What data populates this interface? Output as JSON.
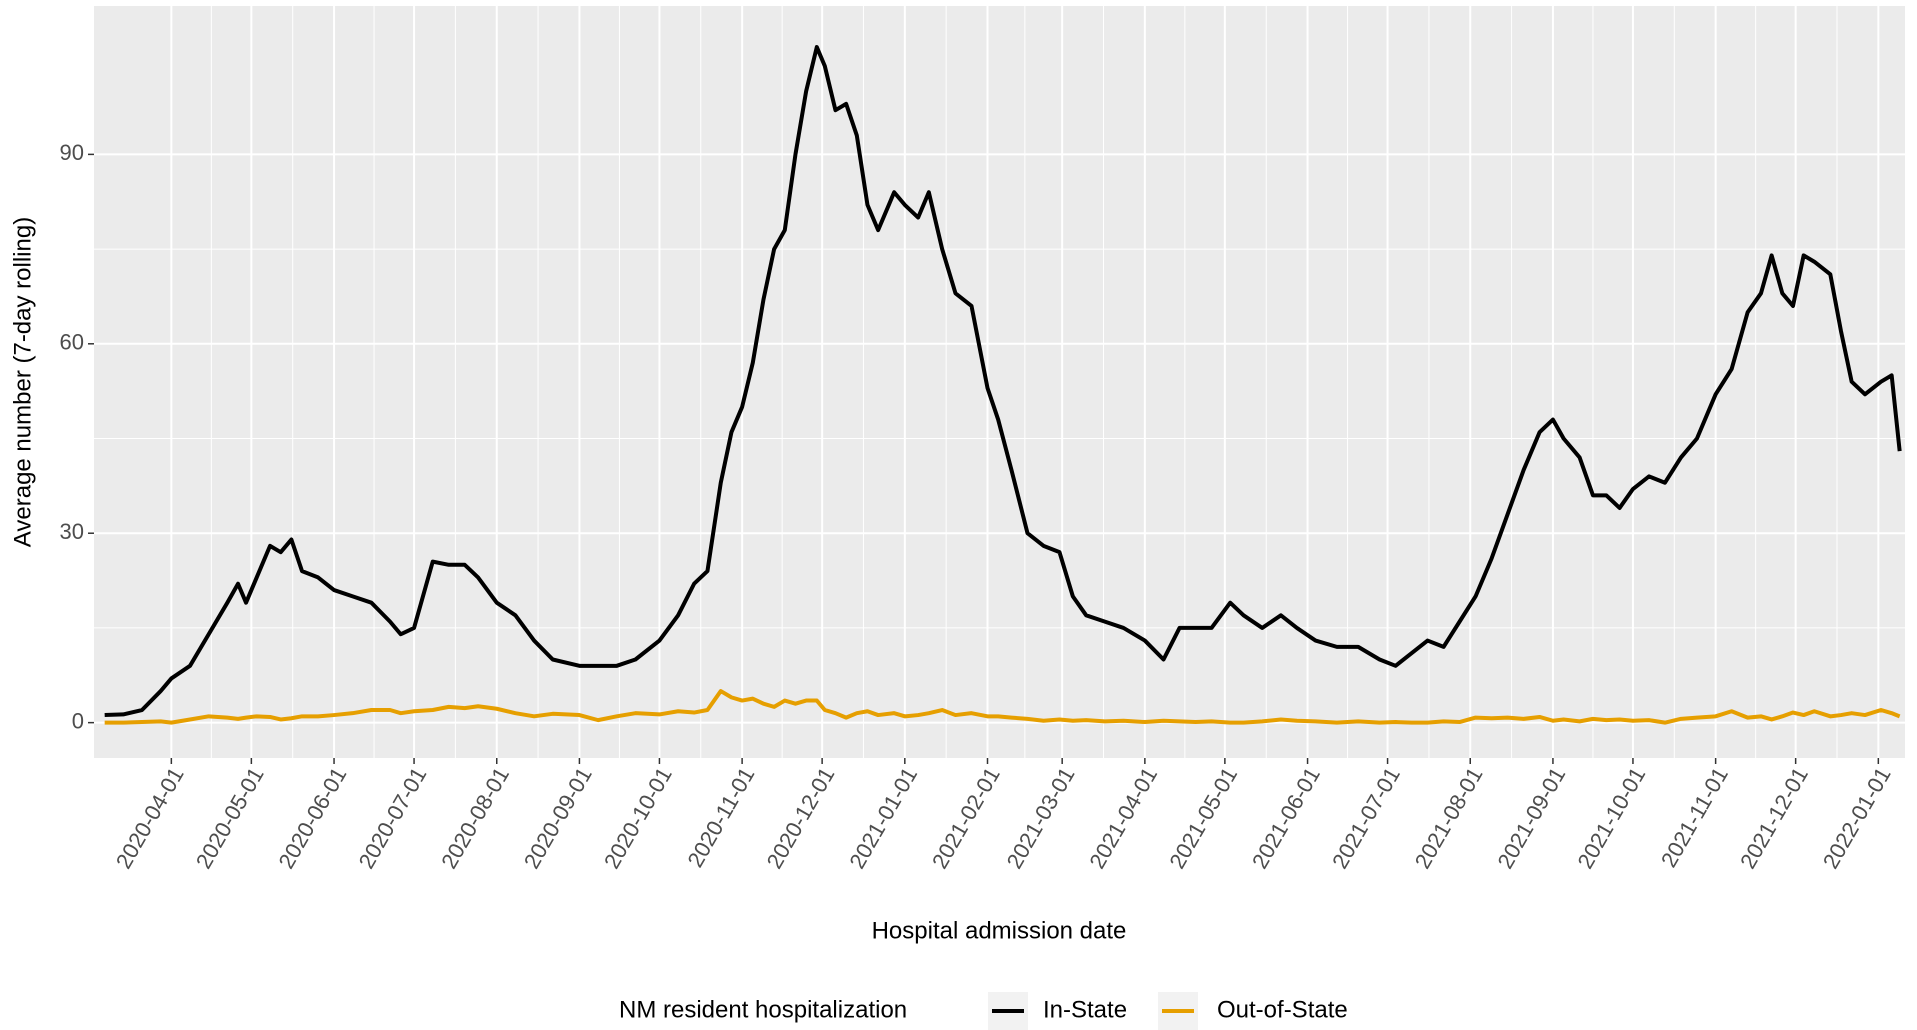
{
  "chart_data": {
    "type": "line",
    "x_label": "Hospital admission date",
    "y_label": "Average number (7-day rolling)",
    "legend_title": "NM resident hospitalization",
    "legend_position": "bottom",
    "grid": true,
    "x": [
      "2020-03-07",
      "2020-03-14",
      "2020-03-21",
      "2020-03-28",
      "2020-04-01",
      "2020-04-08",
      "2020-04-15",
      "2020-04-22",
      "2020-04-26",
      "2020-04-29",
      "2020-05-03",
      "2020-05-08",
      "2020-05-12",
      "2020-05-16",
      "2020-05-20",
      "2020-05-26",
      "2020-06-01",
      "2020-06-08",
      "2020-06-15",
      "2020-06-22",
      "2020-06-26",
      "2020-07-01",
      "2020-07-08",
      "2020-07-14",
      "2020-07-20",
      "2020-07-25",
      "2020-08-01",
      "2020-08-08",
      "2020-08-15",
      "2020-08-22",
      "2020-09-01",
      "2020-09-08",
      "2020-09-15",
      "2020-09-22",
      "2020-10-01",
      "2020-10-08",
      "2020-10-14",
      "2020-10-19",
      "2020-10-24",
      "2020-10-28",
      "2020-11-01",
      "2020-11-05",
      "2020-11-09",
      "2020-11-13",
      "2020-11-17",
      "2020-11-21",
      "2020-11-25",
      "2020-11-29",
      "2020-12-02",
      "2020-12-06",
      "2020-12-10",
      "2020-12-14",
      "2020-12-18",
      "2020-12-22",
      "2020-12-28",
      "2021-01-01",
      "2021-01-06",
      "2021-01-10",
      "2021-01-15",
      "2021-01-20",
      "2021-01-26",
      "2021-02-01",
      "2021-02-05",
      "2021-02-10",
      "2021-02-16",
      "2021-02-22",
      "2021-02-28",
      "2021-03-05",
      "2021-03-10",
      "2021-03-17",
      "2021-03-24",
      "2021-04-01",
      "2021-04-08",
      "2021-04-14",
      "2021-04-20",
      "2021-04-26",
      "2021-05-03",
      "2021-05-08",
      "2021-05-15",
      "2021-05-22",
      "2021-05-28",
      "2021-06-04",
      "2021-06-12",
      "2021-06-20",
      "2021-06-28",
      "2021-07-04",
      "2021-07-10",
      "2021-07-16",
      "2021-07-22",
      "2021-07-28",
      "2021-08-03",
      "2021-08-09",
      "2021-08-15",
      "2021-08-21",
      "2021-08-27",
      "2021-09-01",
      "2021-09-05",
      "2021-09-11",
      "2021-09-16",
      "2021-09-21",
      "2021-09-26",
      "2021-10-01",
      "2021-10-07",
      "2021-10-13",
      "2021-10-19",
      "2021-10-25",
      "2021-11-01",
      "2021-11-07",
      "2021-11-13",
      "2021-11-18",
      "2021-11-22",
      "2021-11-26",
      "2021-11-30",
      "2021-12-04",
      "2021-12-08",
      "2021-12-14",
      "2021-12-18",
      "2021-12-22",
      "2021-12-27",
      "2022-01-02",
      "2022-01-06",
      "2022-01-09"
    ],
    "series": [
      {
        "name": "In-State",
        "color": "#000000",
        "values": [
          1.2,
          1.3,
          2,
          5,
          7,
          9,
          14,
          19,
          22,
          19,
          23,
          28,
          27,
          29,
          24,
          23,
          21,
          20,
          19,
          16,
          14,
          15,
          25.5,
          25,
          25,
          23,
          19,
          17,
          13,
          10,
          9,
          9,
          9,
          10,
          13,
          17,
          22,
          24,
          38,
          46,
          50,
          57,
          67,
          75,
          78,
          90,
          100,
          107,
          104,
          97,
          98,
          93,
          82,
          78,
          84,
          82,
          80,
          84,
          75,
          68,
          66,
          53,
          48,
          40,
          30,
          28,
          27,
          20,
          17,
          16,
          15,
          13,
          10,
          15,
          15,
          15,
          19,
          17,
          15,
          17,
          15,
          13,
          12,
          12,
          10,
          9,
          11,
          13,
          12,
          16,
          20,
          26,
          33,
          40,
          46,
          48,
          45,
          42,
          36,
          36,
          34,
          37,
          39,
          38,
          42,
          45,
          52,
          56,
          65,
          68,
          74,
          68,
          66,
          74,
          73,
          71,
          62,
          54,
          52,
          54,
          55,
          43
        ]
      },
      {
        "name": "Out-of-State",
        "color": "#e69f00",
        "values": [
          0,
          0,
          0.1,
          0.2,
          0,
          0.5,
          1,
          0.8,
          0.6,
          0.8,
          1,
          0.9,
          0.5,
          0.7,
          1,
          1,
          1.2,
          1.5,
          2,
          2,
          1.5,
          1.8,
          2,
          2.5,
          2.3,
          2.6,
          2.2,
          1.5,
          1,
          1.4,
          1.2,
          0.4,
          1,
          1.5,
          1.3,
          1.8,
          1.6,
          2,
          5,
          4,
          3.5,
          3.8,
          3,
          2.5,
          3.5,
          3,
          3.5,
          3.5,
          2,
          1.5,
          0.8,
          1.5,
          1.8,
          1.2,
          1.5,
          1,
          1.2,
          1.5,
          2,
          1.2,
          1.5,
          1,
          1,
          0.8,
          0.6,
          0.3,
          0.5,
          0.3,
          0.4,
          0.2,
          0.3,
          0.1,
          0.3,
          0.2,
          0.1,
          0.2,
          0,
          0,
          0.2,
          0.5,
          0.3,
          0.2,
          0,
          0.2,
          0,
          0.1,
          0,
          0,
          0.2,
          0.1,
          0.8,
          0.7,
          0.8,
          0.6,
          0.9,
          0.3,
          0.5,
          0.2,
          0.6,
          0.4,
          0.5,
          0.3,
          0.4,
          0,
          0.6,
          0.8,
          1,
          1.8,
          0.8,
          1,
          0.5,
          1,
          1.6,
          1.2,
          1.8,
          1,
          1.2,
          1.5,
          1.2,
          2,
          1.5,
          1
        ]
      }
    ],
    "xlim": [
      "2020-03-03",
      "2022-01-11"
    ],
    "xticks": [
      "2020-04-01",
      "2020-05-01",
      "2020-06-01",
      "2020-07-01",
      "2020-08-01",
      "2020-09-01",
      "2020-10-01",
      "2020-11-01",
      "2020-12-01",
      "2021-01-01",
      "2021-02-01",
      "2021-03-01",
      "2021-04-01",
      "2021-05-01",
      "2021-06-01",
      "2021-07-01",
      "2021-08-01",
      "2021-09-01",
      "2021-10-01",
      "2021-11-01",
      "2021-12-01",
      "2022-01-01"
    ],
    "ylim": [
      -5.6,
      113.5
    ],
    "yticks": [
      0,
      30,
      60,
      90
    ]
  }
}
